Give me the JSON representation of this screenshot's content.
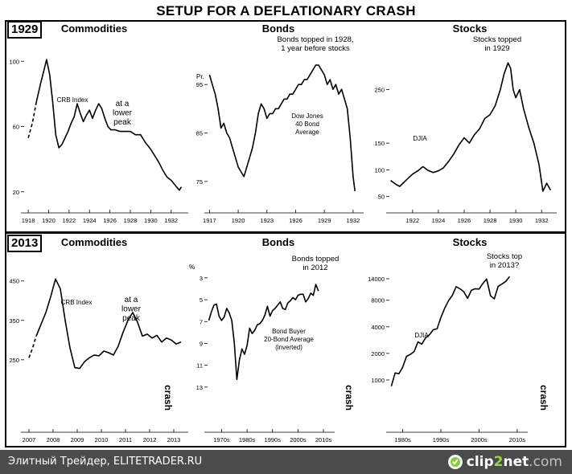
{
  "title": "SETUP FOR A DEFLATIONARY CRASH",
  "row_labels": [
    "1929",
    "2013"
  ],
  "footer": {
    "text": "Элитный Трейдер, ELITETRADER.RU",
    "logo_prefix": "clip",
    "logo_number": "2",
    "logo_name": "net",
    "logo_suffix": ".com",
    "logo_icon": "clip2net-logo-icon"
  },
  "chart_data": [
    {
      "id": "c1929-commodities",
      "type": "line",
      "title": "Commodities",
      "series_label": "CRB Index",
      "annotation": [
        "at a",
        "lower",
        "peak"
      ],
      "x_ticks": [
        [
          "1918",
          1918
        ],
        [
          "1920",
          1920
        ],
        [
          "1922",
          1922
        ],
        [
          "1924",
          1924
        ],
        [
          "1926",
          1926
        ],
        [
          "1928",
          1928
        ],
        [
          "1930",
          1930
        ],
        [
          "1932",
          1932
        ]
      ],
      "y_ticks": [
        [
          "100",
          100
        ],
        [
          "60",
          60
        ],
        [
          "20",
          20
        ]
      ],
      "xlim": [
        1917.6,
        1933.2
      ],
      "ylim": [
        12,
        108
      ],
      "x": [
        1918,
        1918.4,
        1918.8,
        1919.2,
        1919.6,
        1919.8,
        1920.1,
        1920.4,
        1920.7,
        1921.0,
        1921.3,
        1921.6,
        1921.9,
        1922.2,
        1922.5,
        1922.8,
        1923.1,
        1923.4,
        1923.7,
        1924.0,
        1924.3,
        1924.6,
        1924.9,
        1925.2,
        1925.5,
        1925.8,
        1926.1,
        1926.5,
        1927.0,
        1927.5,
        1928.0,
        1928.5,
        1929.0,
        1929.5,
        1930.0,
        1930.4,
        1930.8,
        1931.2,
        1931.6,
        1932.0,
        1932.4,
        1932.8,
        1933.0
      ],
      "y": [
        53,
        62,
        75,
        86,
        96,
        101,
        92,
        75,
        55,
        47,
        49,
        53,
        57,
        62,
        66,
        74,
        68,
        63,
        67,
        70,
        65,
        70,
        74,
        71,
        65,
        60,
        58,
        58,
        57,
        57,
        57,
        55,
        55,
        50,
        46,
        42,
        38,
        33,
        29,
        27,
        24,
        21,
        23
      ],
      "dashed_until": 1918.8
    },
    {
      "id": "c1929-bonds",
      "type": "line",
      "title": "Bonds",
      "series_label": [
        "Dow Jones",
        "40 Bond",
        "Average"
      ],
      "annotation": [
        "Bonds topped in 1928,",
        "1 year before stocks"
      ],
      "y_unit": "Pr.",
      "x_ticks": [
        [
          "1917",
          1917
        ],
        [
          "1920",
          1920
        ],
        [
          "1923",
          1923
        ],
        [
          "1926",
          1926
        ],
        [
          "1929",
          1929
        ],
        [
          "1932",
          1932
        ]
      ],
      "y_ticks": [
        [
          "95",
          95
        ],
        [
          "85",
          85
        ],
        [
          "75",
          75
        ]
      ],
      "xlim": [
        1916.8,
        1932.6
      ],
      "ylim": [
        71,
        100
      ],
      "x": [
        1917.0,
        1917.3,
        1917.6,
        1917.9,
        1918.2,
        1918.5,
        1918.8,
        1919.1,
        1919.4,
        1919.7,
        1920.0,
        1920.3,
        1920.6,
        1920.9,
        1921.2,
        1921.5,
        1921.8,
        1922.1,
        1922.4,
        1922.7,
        1923.0,
        1923.3,
        1923.6,
        1923.9,
        1924.2,
        1924.5,
        1924.8,
        1925.1,
        1925.4,
        1925.7,
        1926.0,
        1926.3,
        1926.6,
        1926.9,
        1927.2,
        1927.5,
        1927.8,
        1928.1,
        1928.4,
        1928.7,
        1929.0,
        1929.3,
        1929.6,
        1929.9,
        1930.2,
        1930.5,
        1930.8,
        1931.1,
        1931.4,
        1931.7,
        1932.0,
        1932.2
      ],
      "y": [
        97,
        95,
        93,
        90,
        86,
        87,
        85,
        84,
        82,
        80,
        78,
        77,
        76,
        78,
        80,
        82,
        85,
        89,
        91,
        90,
        88,
        89,
        89,
        90,
        90,
        91,
        92,
        92,
        93,
        93,
        94,
        95,
        95,
        96,
        96,
        97,
        98,
        99,
        99,
        98,
        97,
        95,
        96,
        94,
        95,
        93,
        94,
        92,
        90,
        84,
        76,
        73
      ]
    },
    {
      "id": "c1929-stocks",
      "type": "line",
      "title": "Stocks",
      "series_label": "DJIA",
      "annotation": [
        "Stocks topped",
        "in 1929"
      ],
      "x_ticks": [
        [
          "1922",
          1922
        ],
        [
          "1924",
          1924
        ],
        [
          "1926",
          1926
        ],
        [
          "1928",
          1928
        ],
        [
          "1930",
          1930
        ],
        [
          "1932",
          1932
        ]
      ],
      "y_ticks": [
        [
          "250",
          250
        ],
        [
          "150",
          150
        ],
        [
          "100",
          100
        ],
        [
          "50",
          50
        ]
      ],
      "xlim": [
        1920.2,
        1932.8
      ],
      "ylim": [
        30,
        320
      ],
      "x": [
        1920.3,
        1920.7,
        1921.0,
        1921.3,
        1921.6,
        1922.0,
        1922.4,
        1922.8,
        1923.2,
        1923.6,
        1924.0,
        1924.4,
        1924.8,
        1925.2,
        1925.6,
        1926.0,
        1926.4,
        1926.8,
        1927.2,
        1927.6,
        1928.0,
        1928.4,
        1928.8,
        1929.1,
        1929.4,
        1929.6,
        1929.8,
        1930.0,
        1930.3,
        1930.6,
        1931.0,
        1931.4,
        1931.8,
        1932.1,
        1932.4,
        1932.7
      ],
      "y": [
        80,
        73,
        69,
        76,
        83,
        92,
        98,
        106,
        99,
        95,
        98,
        104,
        116,
        130,
        147,
        160,
        150,
        166,
        177,
        196,
        203,
        220,
        250,
        280,
        300,
        290,
        250,
        235,
        250,
        215,
        180,
        150,
        110,
        60,
        75,
        62
      ]
    },
    {
      "id": "c2013-commodities",
      "type": "line",
      "title": "Commodities",
      "series_label": "CRB Index",
      "annotation": [
        "at a",
        "lower",
        "peak"
      ],
      "side_label": "crash",
      "x_ticks": [
        [
          "2007",
          2007
        ],
        [
          "2008",
          2008
        ],
        [
          "2009",
          2009
        ],
        [
          "2010",
          2010
        ],
        [
          "2011",
          2011
        ],
        [
          "2012",
          2012
        ],
        [
          "2013",
          2013
        ]
      ],
      "y_ticks": [
        [
          "450",
          450
        ],
        [
          "350",
          350
        ],
        [
          "250",
          250
        ]
      ],
      "xlim": [
        2006.8,
        2013.4
      ],
      "ylim": [
        215,
        480
      ],
      "x": [
        2007.0,
        2007.15,
        2007.3,
        2007.5,
        2007.7,
        2007.9,
        2008.1,
        2008.3,
        2008.5,
        2008.7,
        2008.9,
        2009.1,
        2009.3,
        2009.5,
        2009.7,
        2009.9,
        2010.1,
        2010.3,
        2010.5,
        2010.7,
        2010.9,
        2011.1,
        2011.3,
        2011.5,
        2011.7,
        2011.9,
        2012.1,
        2012.3,
        2012.5,
        2012.7,
        2012.9,
        2013.1,
        2013.3
      ],
      "y": [
        255,
        280,
        310,
        340,
        370,
        410,
        455,
        430,
        350,
        280,
        230,
        228,
        245,
        255,
        262,
        260,
        272,
        268,
        262,
        285,
        320,
        350,
        370,
        345,
        310,
        315,
        305,
        312,
        295,
        305,
        300,
        290,
        295
      ],
      "dashed_until": 2007.3
    },
    {
      "id": "c2013-bonds",
      "type": "line",
      "title": "Bonds",
      "series_label": [
        "Bond Buyer",
        "20-Bond Average",
        "(inverted)"
      ],
      "annotation": [
        "Bonds topped",
        "in 2012"
      ],
      "side_label": "crash",
      "y_unit": "%",
      "x_ticks": [
        [
          "1970s",
          1975
        ],
        [
          "1980s",
          1985
        ],
        [
          "1990s",
          1995
        ],
        [
          "2000s",
          2005
        ],
        [
          "2010s",
          2015
        ]
      ],
      "y_ticks": [
        [
          "3",
          3
        ],
        [
          "5",
          5
        ],
        [
          "7",
          7
        ],
        [
          "9",
          9
        ],
        [
          "11",
          11
        ],
        [
          "13",
          13
        ]
      ],
      "y_inverted": true,
      "xlim": [
        1969.5,
        2017.5
      ],
      "ylim": [
        2.2,
        13.6
      ],
      "x": [
        1970,
        1971,
        1972,
        1973,
        1974,
        1975,
        1976,
        1977,
        1978,
        1979,
        1980,
        1981,
        1982,
        1983,
        1984,
        1985,
        1986,
        1987,
        1988,
        1989,
        1990,
        1991,
        1992,
        1993,
        1994,
        1995,
        1996,
        1997,
        1998,
        1999,
        2000,
        2001,
        2002,
        2003,
        2004,
        2005,
        2006,
        2007,
        2008,
        2009,
        2010,
        2011,
        2012,
        2013
      ],
      "y": [
        6.9,
        6.1,
        5.5,
        5.4,
        6.5,
        6.9,
        6.6,
        5.8,
        6.2,
        6.9,
        9.0,
        12.3,
        10.5,
        9.5,
        10.0,
        9.2,
        7.6,
        8.1,
        7.8,
        7.3,
        7.2,
        6.9,
        6.4,
        5.6,
        6.5,
        6.0,
        5.8,
        5.5,
        5.2,
        5.8,
        5.9,
        5.3,
        5.1,
        4.8,
        5.0,
        4.6,
        4.5,
        4.5,
        5.2,
        4.9,
        4.4,
        4.6,
        3.6,
        4.2
      ]
    },
    {
      "id": "c2013-stocks",
      "type": "line",
      "title": "Stocks",
      "series_label": "DJIA",
      "annotation": [
        "Stocks top",
        "in 2013?"
      ],
      "side_label": "crash",
      "x_ticks": [
        [
          "1980s",
          1985
        ],
        [
          "1990s",
          1995
        ],
        [
          "2000s",
          2005
        ],
        [
          "2010s",
          2015
        ]
      ],
      "y_ticks": [
        [
          "14000",
          14000
        ],
        [
          "8000",
          8000
        ],
        [
          "4000",
          4000
        ],
        [
          "2000",
          2000
        ],
        [
          "1000",
          1000
        ]
      ],
      "y_log": true,
      "xlim": [
        1981.5,
        2016.5
      ],
      "ylim": [
        700,
        18000
      ],
      "x": [
        1982,
        1983,
        1984,
        1985,
        1986,
        1987,
        1988,
        1989,
        1990,
        1991,
        1992,
        1993,
        1994,
        1995,
        1996,
        1997,
        1998,
        1999,
        2000,
        2001,
        2002,
        2003,
        2004,
        2005,
        2006,
        2007,
        2008,
        2009,
        2010,
        2011,
        2012,
        2013
      ],
      "y": [
        850,
        1200,
        1180,
        1400,
        1850,
        1950,
        2100,
        2700,
        2550,
        3000,
        3250,
        3700,
        3800,
        5100,
        6500,
        7900,
        9100,
        11400,
        10800,
        10000,
        8400,
        10400,
        10800,
        10700,
        12400,
        13900,
        9000,
        8300,
        11500,
        12200,
        13100,
        14800
      ]
    }
  ]
}
